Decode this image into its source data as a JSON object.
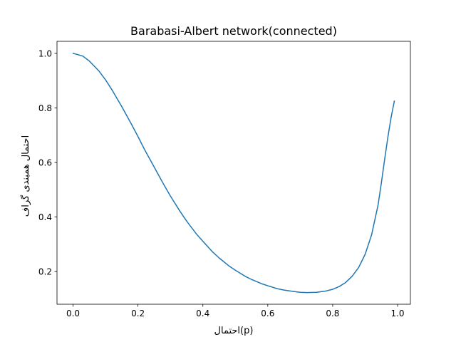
{
  "chart_data": {
    "type": "line",
    "title": "Barabasi-Albert network(connected)",
    "xlabel": "احتمال(p)",
    "ylabel": "احتمال همبندی گراف",
    "xlim": [
      -0.0495,
      1.0395
    ],
    "ylim": [
      0.0802,
      1.0441
    ],
    "x_ticks": [
      0.0,
      0.2,
      0.4,
      0.6,
      0.8,
      1.0
    ],
    "x_tick_labels": [
      "0.0",
      "0.2",
      "0.4",
      "0.6",
      "0.8",
      "1.0"
    ],
    "y_ticks": [
      0.2,
      0.4,
      0.6,
      0.8,
      1.0
    ],
    "y_tick_labels": [
      "0.2",
      "0.4",
      "0.6",
      "0.8",
      "1.0"
    ],
    "grid": false,
    "legend": "none",
    "series": [
      {
        "color": "#1f77b4",
        "x": [
          0.0,
          0.03,
          0.05,
          0.08,
          0.1,
          0.12,
          0.15,
          0.18,
          0.2,
          0.22,
          0.25,
          0.28,
          0.3,
          0.33,
          0.35,
          0.38,
          0.4,
          0.43,
          0.45,
          0.48,
          0.5,
          0.53,
          0.55,
          0.58,
          0.6,
          0.63,
          0.65,
          0.68,
          0.7,
          0.72,
          0.75,
          0.78,
          0.8,
          0.82,
          0.84,
          0.86,
          0.88,
          0.9,
          0.92,
          0.94,
          0.95,
          0.96,
          0.97,
          0.98,
          0.99
        ],
        "y": [
          1.0,
          0.99,
          0.972,
          0.935,
          0.903,
          0.866,
          0.805,
          0.74,
          0.695,
          0.648,
          0.583,
          0.518,
          0.477,
          0.42,
          0.385,
          0.338,
          0.311,
          0.272,
          0.25,
          0.221,
          0.205,
          0.183,
          0.171,
          0.156,
          0.148,
          0.137,
          0.132,
          0.127,
          0.124,
          0.123,
          0.124,
          0.129,
          0.135,
          0.145,
          0.16,
          0.183,
          0.215,
          0.263,
          0.335,
          0.445,
          0.525,
          0.61,
          0.692,
          0.765,
          0.825
        ]
      }
    ]
  }
}
